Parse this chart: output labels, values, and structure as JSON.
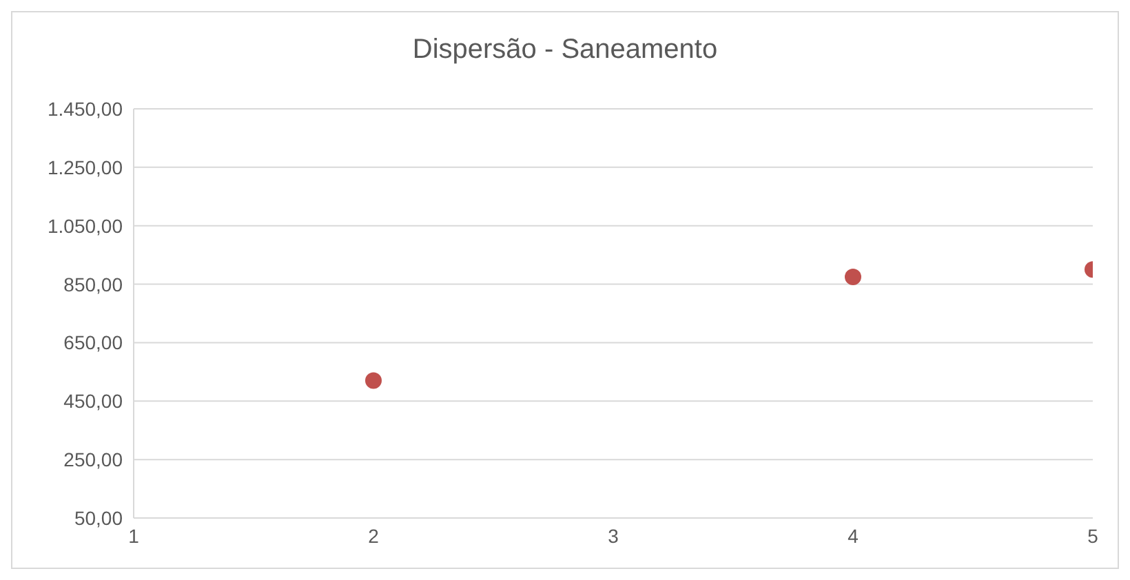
{
  "chart_data": {
    "type": "scatter",
    "title": "Dispersão - Saneamento",
    "x": [
      2,
      4,
      5
    ],
    "series": [
      {
        "color": "#c0504d",
        "values": [
          520,
          875,
          900
        ]
      }
    ],
    "xlim": [
      1,
      5
    ],
    "xticks": [
      1,
      2,
      3,
      4,
      5
    ],
    "ylim": [
      50,
      1450
    ],
    "yticks": [
      {
        "value": 50,
        "label": "50,00"
      },
      {
        "value": 250,
        "label": "250,00"
      },
      {
        "value": 450,
        "label": "450,00"
      },
      {
        "value": 650,
        "label": "650,00"
      },
      {
        "value": 850,
        "label": "850,00"
      },
      {
        "value": 1050,
        "label": "1.050,00"
      },
      {
        "value": 1250,
        "label": "1.250,00"
      },
      {
        "value": 1450,
        "label": "1.450,00"
      }
    ],
    "grid": "y",
    "marker": "circle",
    "legend": false
  }
}
